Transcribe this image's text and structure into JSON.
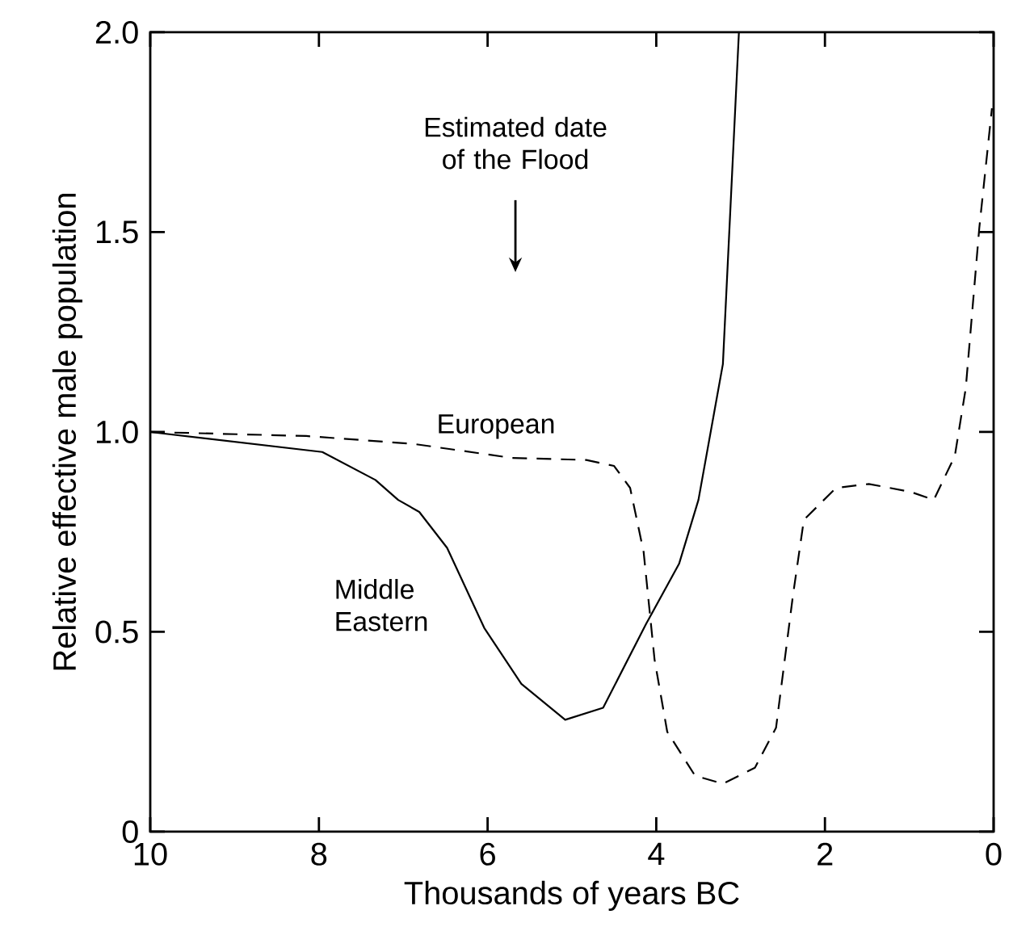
{
  "chart_data": {
    "type": "line",
    "xlabel": "Thousands of years BC",
    "ylabel": "Relative effective male population",
    "xlim": [
      10,
      0
    ],
    "ylim": [
      0,
      2.0
    ],
    "xticks": [
      10,
      8,
      6,
      4,
      2,
      0
    ],
    "yticks": [
      {
        "value": 0,
        "label": "0"
      },
      {
        "value": 0.5,
        "label": "0.5"
      },
      {
        "value": 1.0,
        "label": "1.0"
      },
      {
        "value": 1.5,
        "label": "1.5"
      },
      {
        "value": 2.0,
        "label": "2.0"
      }
    ],
    "grid": false,
    "marker": "none",
    "annotations": [
      "Estimated date of the Flood"
    ],
    "series": [
      {
        "name": "Middle Eastern",
        "color": "#000000",
        "line_style": "solid",
        "x": [
          10.0,
          7.96,
          7.33,
          7.06,
          6.81,
          6.48,
          6.04,
          5.6,
          5.08,
          4.63,
          4.12,
          3.73,
          3.5,
          3.21,
          3.1,
          3.02
        ],
        "values": [
          1.0,
          0.95,
          0.88,
          0.83,
          0.8,
          0.71,
          0.51,
          0.37,
          0.28,
          0.31,
          0.52,
          0.67,
          0.83,
          1.17,
          1.65,
          2.0
        ]
      },
      {
        "name": "European",
        "color": "#000000",
        "line_style": "dashed",
        "x": [
          10.0,
          8.15,
          6.87,
          5.71,
          4.83,
          4.5,
          4.31,
          4.15,
          4.02,
          3.87,
          3.54,
          3.21,
          2.83,
          2.58,
          2.38,
          2.25,
          1.87,
          1.48,
          0.98,
          0.71,
          0.46,
          0.33,
          0.17,
          0.02
        ],
        "values": [
          1.0,
          0.99,
          0.97,
          0.935,
          0.93,
          0.915,
          0.86,
          0.7,
          0.43,
          0.25,
          0.14,
          0.12,
          0.16,
          0.26,
          0.59,
          0.78,
          0.86,
          0.87,
          0.85,
          0.83,
          0.94,
          1.11,
          1.51,
          1.81
        ]
      }
    ]
  }
}
